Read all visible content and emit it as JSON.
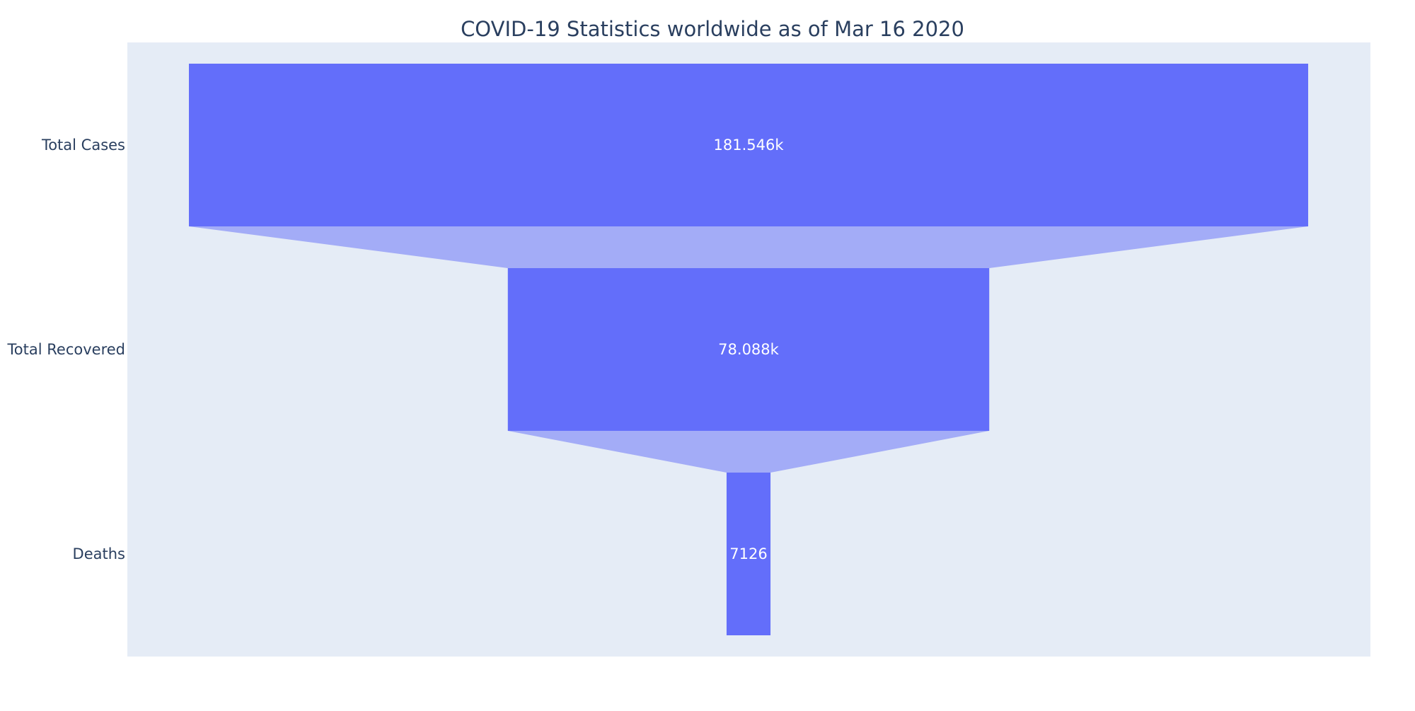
{
  "chart_data": {
    "type": "funnel",
    "title": "COVID-19 Statistics worldwide as of Mar 16 2020",
    "stages": [
      "Total Cases",
      "Total Recovered",
      "Deaths"
    ],
    "values": [
      181546,
      78088,
      7126
    ],
    "value_labels": [
      "181.546k",
      "78.088k",
      "7126"
    ],
    "colors": {
      "bar": "#636efa",
      "connector": "#a3acf7",
      "plot_background": "#e5ecf6",
      "paper_background": "#ffffff",
      "text": "#2a3f5f",
      "value_text": "#ffffff"
    },
    "grid": false,
    "legend": "none"
  }
}
